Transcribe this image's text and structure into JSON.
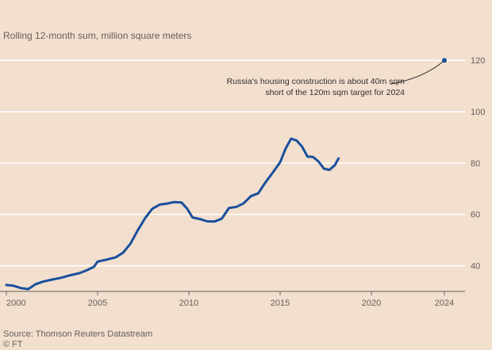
{
  "subtitle": "Rolling 12-month sum, million square meters",
  "source_line": "Source: Thomson Reuters Datastream",
  "credit_line": "© FT",
  "colors": {
    "background": "#f2dfce",
    "gridline": "#ffffff",
    "series": "#1a4f9c",
    "annotation_line": "#33302e",
    "text": "#66605c"
  },
  "chart_data": {
    "type": "line",
    "title": "",
    "xlabel": "",
    "ylabel": "",
    "xlim": [
      2000,
      2025
    ],
    "ylim": [
      30,
      125
    ],
    "x_ticks": [
      2000,
      2005,
      2010,
      2015,
      2020,
      2024
    ],
    "x_tick_labels": [
      "2000",
      "2005",
      "2010",
      "2015",
      "2020",
      "2024"
    ],
    "y_ticks": [
      40,
      60,
      80,
      100,
      120
    ],
    "y_tick_labels": [
      "40",
      "60",
      "80",
      "100",
      "120"
    ],
    "grid": true,
    "series": [
      {
        "color": "#1a4f9c",
        "x": [
          2000.0,
          2000.4,
          2000.8,
          2001.2,
          2001.6,
          2002.0,
          2002.5,
          2003.0,
          2003.5,
          2004.0,
          2004.4,
          2004.8,
          2005.0,
          2005.5,
          2006.0,
          2006.4,
          2006.8,
          2007.2,
          2007.6,
          2008.0,
          2008.4,
          2008.8,
          2009.2,
          2009.6,
          2009.9,
          2010.2,
          2010.6,
          2011.0,
          2011.4,
          2011.8,
          2012.2,
          2012.6,
          2013.0,
          2013.4,
          2013.8,
          2014.2,
          2014.6,
          2015.0,
          2015.3,
          2015.6,
          2015.9,
          2016.2,
          2016.5,
          2016.8,
          2017.1,
          2017.4,
          2017.7,
          2018.0,
          2018.2
        ],
        "y": [
          32.5,
          32.2,
          31.3,
          30.9,
          32.8,
          33.8,
          34.6,
          35.3,
          36.3,
          37.1,
          38.2,
          39.6,
          41.6,
          42.4,
          43.3,
          45.1,
          48.6,
          53.8,
          58.5,
          62.2,
          63.8,
          64.2,
          64.8,
          64.6,
          62.3,
          58.8,
          58.2,
          57.3,
          57.2,
          58.3,
          62.5,
          62.9,
          64.3,
          67.1,
          68.2,
          72.5,
          76.3,
          80.3,
          85.6,
          89.5,
          88.8,
          86.4,
          82.5,
          82.4,
          80.6,
          77.8,
          77.3,
          79.2,
          81.8
        ]
      }
    ],
    "target_point": {
      "x": 2024,
      "y": 120
    },
    "annotations": [
      {
        "line1": "Russia's housing construction is about 40m sqm",
        "line2": "short of the 120m sqm target for 2024"
      }
    ]
  }
}
